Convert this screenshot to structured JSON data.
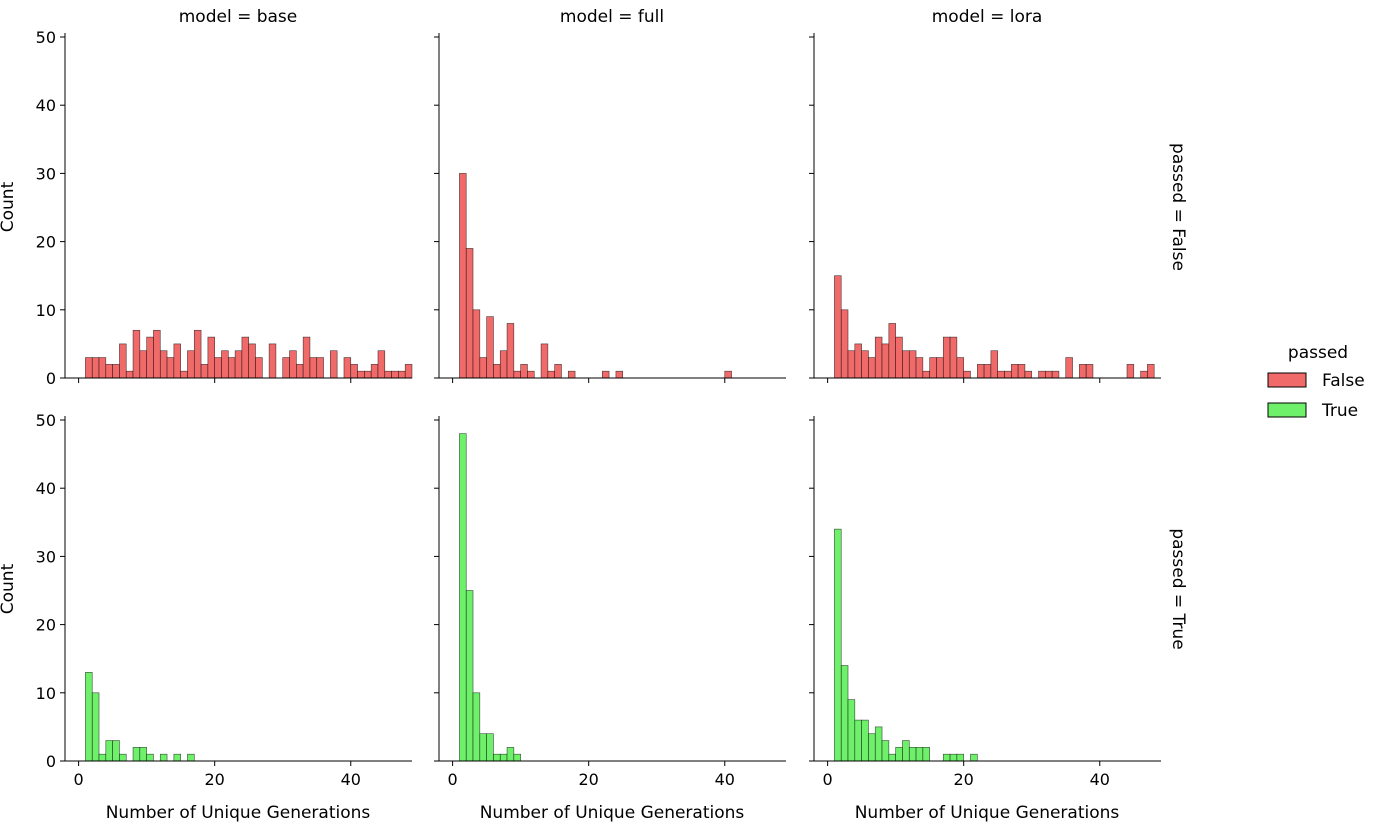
{
  "chart_data": {
    "type": "bar",
    "kind": "faceted-histogram",
    "xlabel": "Number of Unique Generations",
    "ylabel": "Count",
    "xlim": [
      -2,
      49
    ],
    "ylim": [
      0,
      50
    ],
    "x_ticks": [
      0,
      20,
      40
    ],
    "y_ticks": [
      0,
      10,
      20,
      30,
      40,
      50
    ],
    "bin_width": 1,
    "colors": {
      "False": "#f06a6a",
      "True": "#6ef06a"
    },
    "legend": {
      "title": "passed",
      "position": "right",
      "entries": [
        {
          "label": "False",
          "color": "#f06a6a"
        },
        {
          "label": "True",
          "color": "#6ef06a"
        }
      ]
    },
    "col_titles": [
      "model = base",
      "model = full",
      "model = lora"
    ],
    "row_titles": [
      "passed = False",
      "passed = True"
    ],
    "panels": [
      {
        "model": "base",
        "passed": "False",
        "bins": [
          [
            1,
            3
          ],
          [
            2,
            3
          ],
          [
            3,
            3
          ],
          [
            4,
            2
          ],
          [
            5,
            2
          ],
          [
            6,
            5
          ],
          [
            7,
            1
          ],
          [
            8,
            7
          ],
          [
            9,
            4
          ],
          [
            10,
            6
          ],
          [
            11,
            7
          ],
          [
            12,
            4
          ],
          [
            13,
            3
          ],
          [
            14,
            5
          ],
          [
            15,
            1
          ],
          [
            16,
            4
          ],
          [
            17,
            7
          ],
          [
            18,
            2
          ],
          [
            19,
            6
          ],
          [
            20,
            3
          ],
          [
            21,
            4
          ],
          [
            22,
            3
          ],
          [
            23,
            4
          ],
          [
            24,
            6
          ],
          [
            25,
            5
          ],
          [
            26,
            3
          ],
          [
            28,
            5
          ],
          [
            30,
            3
          ],
          [
            31,
            4
          ],
          [
            32,
            2
          ],
          [
            33,
            6
          ],
          [
            34,
            3
          ],
          [
            35,
            3
          ],
          [
            37,
            4
          ],
          [
            39,
            3
          ],
          [
            40,
            2
          ],
          [
            41,
            1
          ],
          [
            42,
            1
          ],
          [
            43,
            2
          ],
          [
            44,
            4
          ],
          [
            45,
            1
          ],
          [
            46,
            1
          ],
          [
            47,
            1
          ],
          [
            48,
            2
          ]
        ]
      },
      {
        "model": "full",
        "passed": "False",
        "bins": [
          [
            1,
            30
          ],
          [
            2,
            19
          ],
          [
            3,
            10
          ],
          [
            4,
            3
          ],
          [
            5,
            9
          ],
          [
            6,
            2
          ],
          [
            7,
            4
          ],
          [
            8,
            8
          ],
          [
            9,
            1
          ],
          [
            10,
            2
          ],
          [
            11,
            1
          ],
          [
            13,
            5
          ],
          [
            14,
            1
          ],
          [
            15,
            2
          ],
          [
            17,
            1
          ],
          [
            22,
            1
          ],
          [
            24,
            1
          ],
          [
            40,
            1
          ]
        ]
      },
      {
        "model": "lora",
        "passed": "False",
        "bins": [
          [
            1,
            15
          ],
          [
            2,
            10
          ],
          [
            3,
            4
          ],
          [
            4,
            5
          ],
          [
            5,
            4
          ],
          [
            6,
            3
          ],
          [
            7,
            6
          ],
          [
            8,
            5
          ],
          [
            9,
            8
          ],
          [
            10,
            6
          ],
          [
            11,
            4
          ],
          [
            12,
            4
          ],
          [
            13,
            3
          ],
          [
            14,
            1
          ],
          [
            15,
            3
          ],
          [
            16,
            3
          ],
          [
            17,
            6
          ],
          [
            18,
            6
          ],
          [
            19,
            3
          ],
          [
            20,
            1
          ],
          [
            22,
            2
          ],
          [
            23,
            2
          ],
          [
            24,
            4
          ],
          [
            25,
            1
          ],
          [
            26,
            1
          ],
          [
            27,
            2
          ],
          [
            28,
            2
          ],
          [
            29,
            1
          ],
          [
            31,
            1
          ],
          [
            32,
            1
          ],
          [
            33,
            1
          ],
          [
            35,
            3
          ],
          [
            37,
            2
          ],
          [
            38,
            2
          ],
          [
            44,
            2
          ],
          [
            46,
            1
          ],
          [
            47,
            2
          ]
        ]
      },
      {
        "model": "base",
        "passed": "True",
        "bins": [
          [
            1,
            13
          ],
          [
            2,
            10
          ],
          [
            3,
            1
          ],
          [
            4,
            3
          ],
          [
            5,
            3
          ],
          [
            6,
            1
          ],
          [
            8,
            2
          ],
          [
            9,
            2
          ],
          [
            10,
            1
          ],
          [
            12,
            1
          ],
          [
            14,
            1
          ],
          [
            16,
            1
          ]
        ]
      },
      {
        "model": "full",
        "passed": "True",
        "bins": [
          [
            1,
            48
          ],
          [
            2,
            25
          ],
          [
            3,
            10
          ],
          [
            4,
            4
          ],
          [
            5,
            4
          ],
          [
            6,
            1
          ],
          [
            7,
            1
          ],
          [
            8,
            2
          ],
          [
            9,
            1
          ]
        ]
      },
      {
        "model": "lora",
        "passed": "True",
        "bins": [
          [
            1,
            34
          ],
          [
            2,
            14
          ],
          [
            3,
            9
          ],
          [
            4,
            6
          ],
          [
            5,
            6
          ],
          [
            6,
            4
          ],
          [
            7,
            5
          ],
          [
            8,
            3
          ],
          [
            9,
            1
          ],
          [
            10,
            2
          ],
          [
            11,
            3
          ],
          [
            12,
            2
          ],
          [
            13,
            2
          ],
          [
            14,
            2
          ],
          [
            17,
            1
          ],
          [
            18,
            1
          ],
          [
            19,
            1
          ],
          [
            21,
            1
          ]
        ]
      }
    ]
  }
}
